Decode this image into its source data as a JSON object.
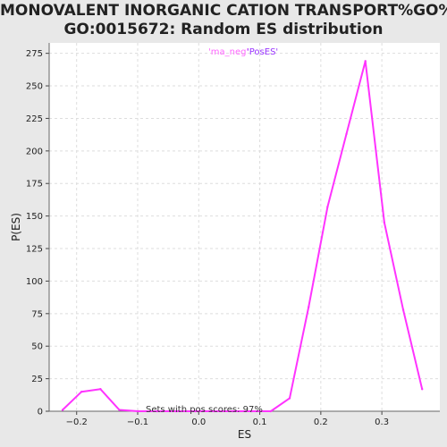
{
  "chart_data": {
    "type": "line",
    "title_line1": "MONOVALENT INORGANIC CATION TRANSPORT%GO%",
    "title_line2": "GO:0015672: Random ES distribution",
    "xlabel": "ES",
    "ylabel": "P(ES)",
    "xlim": [
      -0.245,
      0.395
    ],
    "ylim": [
      0,
      283
    ],
    "xticks": [
      -0.2,
      -0.1,
      0.0,
      0.1,
      0.2,
      0.3
    ],
    "xtick_labels": [
      "−0.2",
      "−0.1",
      "0.0",
      "0.1",
      "0.2",
      "0.3"
    ],
    "yticks": [
      0,
      25,
      50,
      75,
      100,
      125,
      150,
      175,
      200,
      225,
      250,
      275
    ],
    "ytick_labels": [
      "0",
      "25",
      "50",
      "75",
      "100",
      "125",
      "150",
      "175",
      "200",
      "225",
      "250",
      "275"
    ],
    "grid": true,
    "legend_placement": "top-center",
    "legend": [
      {
        "label": "'ma_neg'",
        "color": "#ff66ff"
      },
      {
        "label": "'PosES'",
        "color": "#9933ff"
      }
    ],
    "annotation": "Sets with pos scores: 97%",
    "series": [
      {
        "name": "'ma_neg'",
        "color": "#ff33ff",
        "x": [
          -0.223,
          -0.192,
          -0.161,
          -0.13,
          -0.099,
          -0.068,
          -0.037,
          -0.006,
          0.025,
          0.056,
          0.087,
          0.118,
          0.149,
          0.18,
          0.211,
          0.242,
          0.273,
          0.304,
          0.335,
          0.366
        ],
        "y": [
          1,
          15,
          17,
          1,
          0,
          0,
          0,
          0,
          0,
          0,
          0,
          0,
          10,
          80,
          157,
          213,
          269,
          145,
          78,
          17
        ]
      }
    ]
  }
}
